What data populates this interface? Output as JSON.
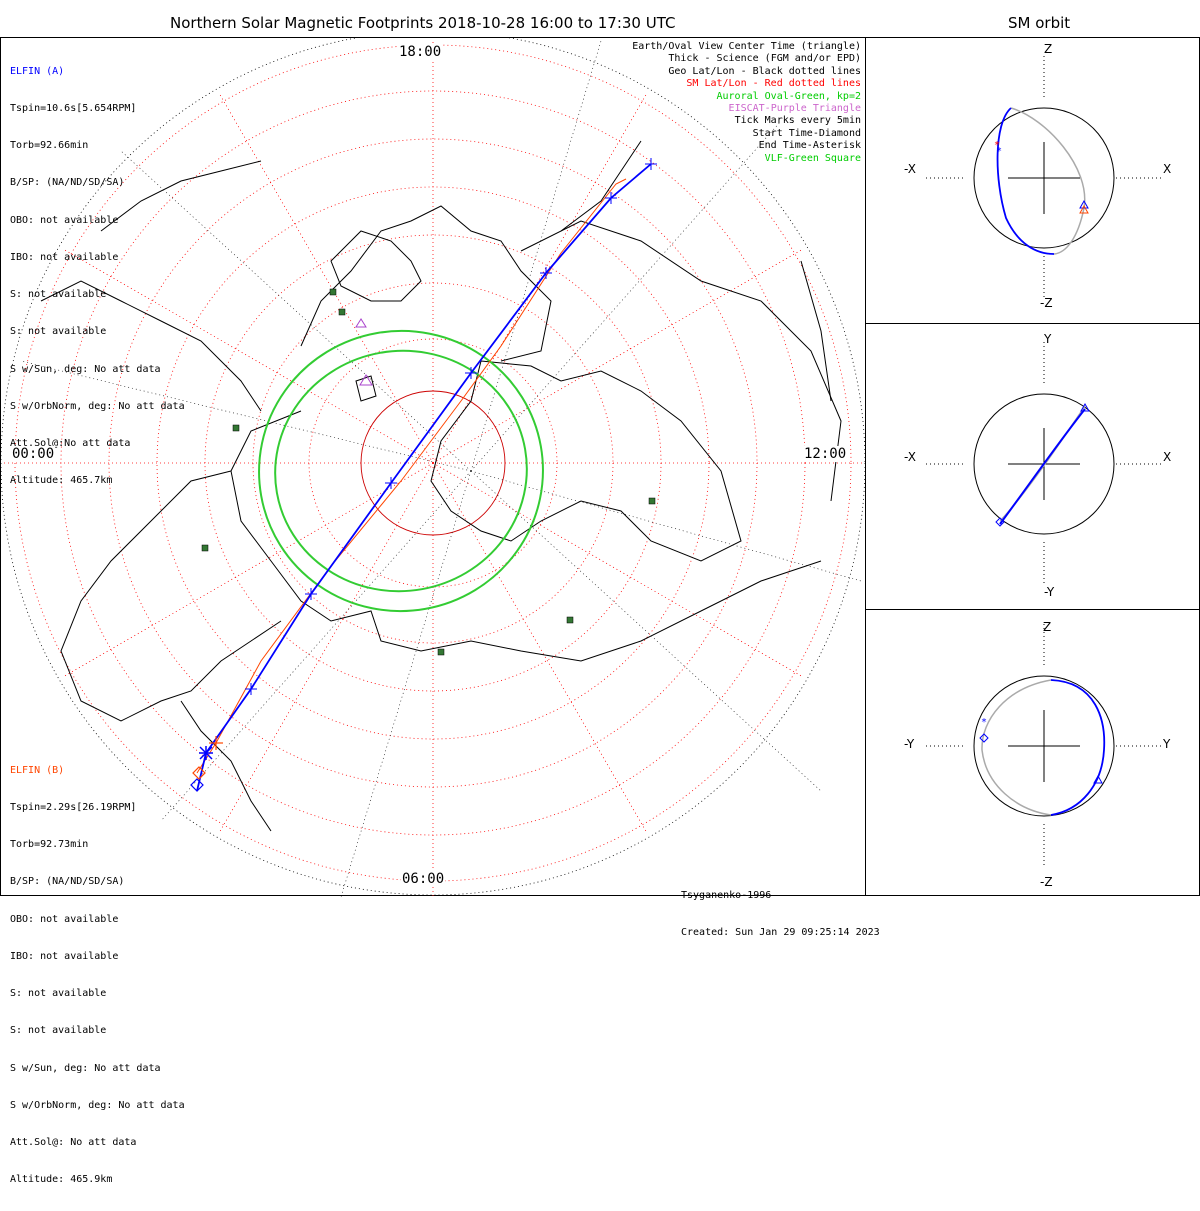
{
  "title": "Northern Solar Magnetic Footprints 2018-10-28 16:00 to 17:30 UTC",
  "orbit_title": "SM orbit",
  "elfin_a": {
    "name": "ELFIN (A)",
    "color": "#0000ff",
    "lines": [
      "Tspin=10.6s[5.654RPM]",
      "Torb=92.66min",
      "B/SP: (NA/ND/SD/SA)",
      "OBO: not available",
      "IBO: not available",
      "S: not available",
      "S: not available",
      "S w/Sun, deg: No att data",
      "S w/OrbNorm, deg: No att data",
      "Att.Sol@:No att data",
      "Altitude: 465.7km"
    ]
  },
  "elfin_b": {
    "name": "ELFIN (B)",
    "color": "#ff4500",
    "lines": [
      "Tspin=2.29s[26.19RPM]",
      "Torb=92.73min",
      "B/SP: (NA/ND/SD/SA)",
      "OBO: not available",
      "IBO: not available",
      "S: not available",
      "S: not available",
      "S w/Sun, deg: No att data",
      "S w/OrbNorm, deg: No att data",
      "Att.Sol@: No att data",
      "Altitude: 465.9km"
    ]
  },
  "legend": [
    {
      "text": "Earth/Oval View Center Time (triangle)",
      "color": "#000000"
    },
    {
      "text": "Thick - Science (FGM and/or EPD)",
      "color": "#000000"
    },
    {
      "text": "Geo Lat/Lon - Black dotted lines",
      "color": "#000000"
    },
    {
      "text": "SM Lat/Lon - Red dotted lines",
      "color": "#ff0000"
    },
    {
      "text": "Auroral Oval-Green, kp=2",
      "color": "#00cc00"
    },
    {
      "text": "EISCAT-Purple Triangle",
      "color": "#cc66cc"
    },
    {
      "text": "Tick Marks every 5min",
      "color": "#000000"
    },
    {
      "text": "Start Time-Diamond",
      "color": "#000000"
    },
    {
      "text": "End Time-Asterisk",
      "color": "#000000"
    },
    {
      "text": "VLF-Green Square",
      "color": "#00cc00"
    }
  ],
  "hour_labels": {
    "top": "18:00",
    "left": "00:00",
    "right": "12:00",
    "bottom": "06:00"
  },
  "footer": [
    "Tsyganenko-1996",
    "Created: Sun Jan 29 09:25:14 2023"
  ],
  "orbit_panels": [
    {
      "top": "Z",
      "bottom": "-Z",
      "left": "-X",
      "right": "X"
    },
    {
      "top": "Y",
      "bottom": "-Y",
      "left": "-X",
      "right": "X"
    },
    {
      "top": "Z",
      "bottom": "-Z",
      "left": "-Y",
      "right": "Y"
    }
  ]
}
